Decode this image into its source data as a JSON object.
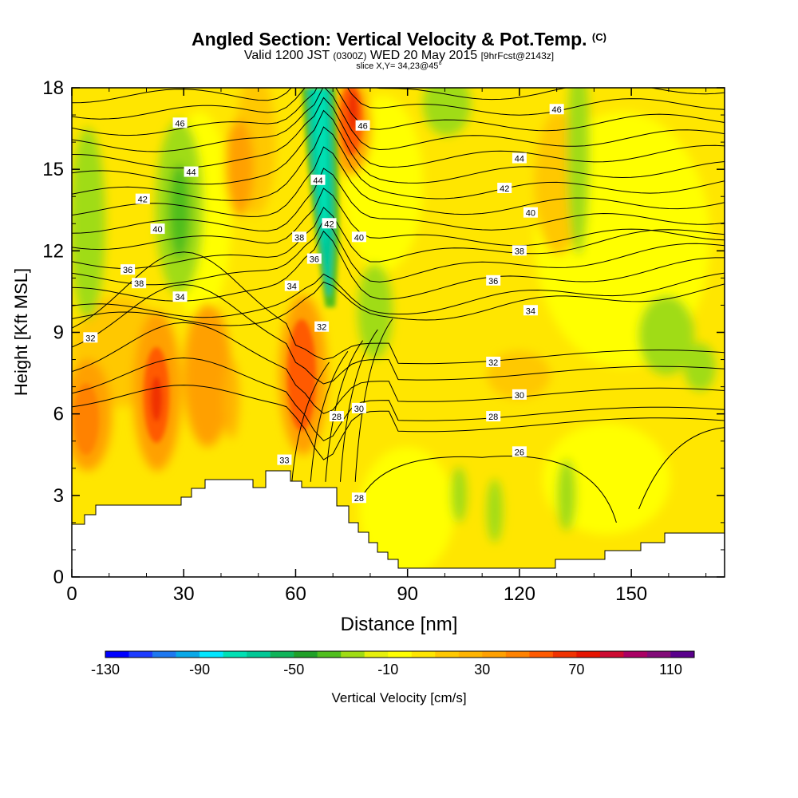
{
  "title": {
    "main": "Angled Section: Vertical Velocity & Pot.Temp.",
    "main_unit": "(C)",
    "valid_prefix": "Valid 1200 JST",
    "valid_utc": "(0300Z)",
    "valid_date": "WED 20 May 2015",
    "forecast": "[9hrFcst@2143z]",
    "slice": "slice X,Y= 34,23@45°"
  },
  "chart_data": {
    "type": "heatmap",
    "xlabel": "Distance [nm]",
    "ylabel": "Height [Kft MSL]",
    "xlim": [
      0,
      175
    ],
    "ylim": [
      0,
      18
    ],
    "x_ticks": [
      0,
      30,
      60,
      90,
      120,
      150
    ],
    "y_ticks": [
      0,
      3,
      6,
      9,
      12,
      15,
      18
    ],
    "colorbar": {
      "label": "Vertical Velocity [cm/s]",
      "range": [
        -130,
        120
      ],
      "step": 10,
      "tick_labels": [
        -130,
        -90,
        -50,
        -10,
        30,
        70,
        110
      ],
      "colors": [
        "#0000ff",
        "#1e3cff",
        "#1e78f0",
        "#08a8e8",
        "#00e6ff",
        "#00e0b4",
        "#00c896",
        "#10b45a",
        "#20a028",
        "#50be1e",
        "#a0dc14",
        "#e6f00a",
        "#ffff00",
        "#ffe600",
        "#ffc800",
        "#ffb400",
        "#ffa000",
        "#ff8200",
        "#ff5a00",
        "#f03200",
        "#e61400",
        "#cd0a32",
        "#aa0064",
        "#820a78",
        "#5a008c"
      ]
    },
    "theta_contour_labels": [
      {
        "x": 5,
        "y": 8.8,
        "value": "32"
      },
      {
        "x": 15,
        "y": 11.3,
        "value": "36"
      },
      {
        "x": 18,
        "y": 10.8,
        "value": "38"
      },
      {
        "x": 29,
        "y": 10.3,
        "value": "34"
      },
      {
        "x": 23,
        "y": 12.8,
        "value": "40"
      },
      {
        "x": 19,
        "y": 13.9,
        "value": "42"
      },
      {
        "x": 32,
        "y": 14.9,
        "value": "44"
      },
      {
        "x": 29,
        "y": 16.7,
        "value": "46"
      },
      {
        "x": 59,
        "y": 10.7,
        "value": "34"
      },
      {
        "x": 61,
        "y": 12.5,
        "value": "38"
      },
      {
        "x": 65,
        "y": 11.7,
        "value": "36"
      },
      {
        "x": 69,
        "y": 13.0,
        "value": "42"
      },
      {
        "x": 66,
        "y": 14.6,
        "value": "44"
      },
      {
        "x": 78,
        "y": 16.6,
        "value": "46"
      },
      {
        "x": 77,
        "y": 12.5,
        "value": "40"
      },
      {
        "x": 67,
        "y": 9.2,
        "value": "32"
      },
      {
        "x": 77,
        "y": 6.2,
        "value": "30"
      },
      {
        "x": 71,
        "y": 5.9,
        "value": "28"
      },
      {
        "x": 57,
        "y": 4.3,
        "value": "33"
      },
      {
        "x": 77,
        "y": 2.9,
        "value": "28"
      },
      {
        "x": 130,
        "y": 17.2,
        "value": "46"
      },
      {
        "x": 120,
        "y": 15.4,
        "value": "44"
      },
      {
        "x": 116,
        "y": 14.3,
        "value": "42"
      },
      {
        "x": 123,
        "y": 13.4,
        "value": "40"
      },
      {
        "x": 120,
        "y": 12.0,
        "value": "38"
      },
      {
        "x": 113,
        "y": 10.9,
        "value": "36"
      },
      {
        "x": 123,
        "y": 9.8,
        "value": "34"
      },
      {
        "x": 113,
        "y": 7.9,
        "value": "32"
      },
      {
        "x": 120,
        "y": 6.7,
        "value": "30"
      },
      {
        "x": 113,
        "y": 5.9,
        "value": "28"
      },
      {
        "x": 120,
        "y": 4.6,
        "value": "26"
      }
    ]
  }
}
